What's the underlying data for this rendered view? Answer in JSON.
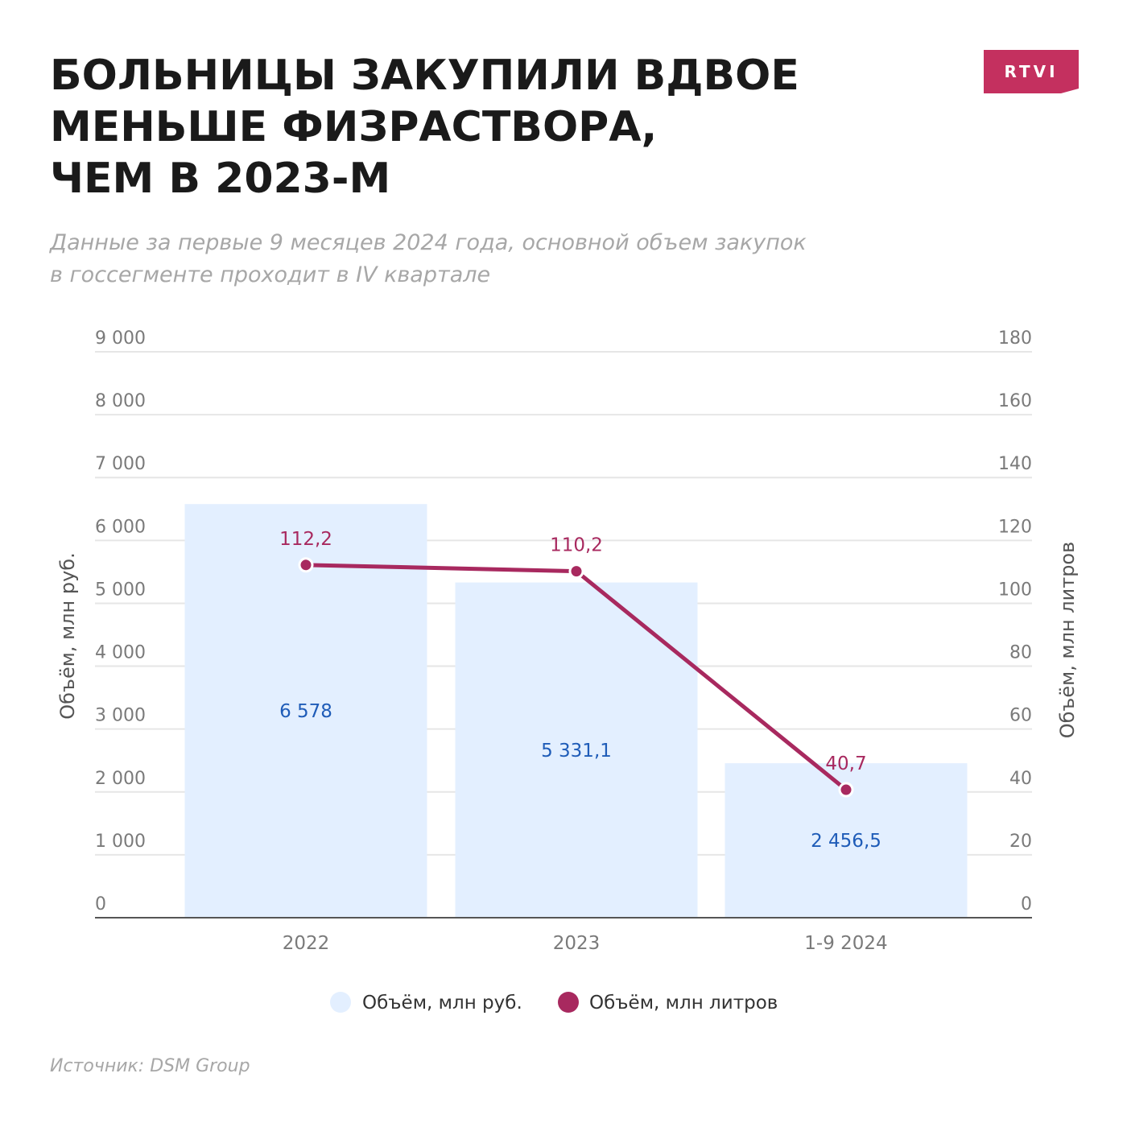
{
  "header": {
    "title_lines": [
      "БОЛЬНИЦЫ ЗАКУПИЛИ ВДВОЕ",
      "МЕНЬШЕ ФИЗРАСТВОРА,",
      "ЧЕМ В 2023-М"
    ],
    "subtitle_lines": [
      "Данные за первые 9 месяцев 2024 года, основной объем закупок",
      "в госсегменте проходит в IV квартале"
    ],
    "logo_text": "RTVI"
  },
  "source": "Источник: DSM Group",
  "colors": {
    "bar": "#e3efff",
    "line": "#a8295f",
    "bar_label": "#1f5cb8",
    "logo": "#c4305f",
    "grid": "#e6e6e6"
  },
  "chart_data": {
    "type": "bar",
    "categories": [
      "2022",
      "2023",
      "1-9 2024"
    ],
    "series": [
      {
        "name": "Объём, млн руб.",
        "type": "bar",
        "axis": "left",
        "values": [
          6578,
          5331.1,
          2456.5
        ],
        "labels": [
          "6 578",
          "5 331,1",
          "2 456,5"
        ]
      },
      {
        "name": "Объём, млн литров",
        "type": "line",
        "axis": "right",
        "values": [
          112.2,
          110.2,
          40.7
        ],
        "labels": [
          "112,2",
          "110,2",
          "40,7"
        ]
      }
    ],
    "ylabel": "Объём, млн руб.",
    "y2label": "Объём, млн литров",
    "ylim": [
      0,
      9000
    ],
    "y2lim": [
      0,
      180
    ],
    "yticks": [
      "0",
      "1 000",
      "2 000",
      "3 000",
      "4 000",
      "5 000",
      "6 000",
      "7 000",
      "8 000",
      "9 000"
    ],
    "y2ticks": [
      "0",
      "20",
      "40",
      "60",
      "80",
      "100",
      "120",
      "140",
      "160",
      "180"
    ],
    "grid": true,
    "legend": "bottom-center"
  }
}
